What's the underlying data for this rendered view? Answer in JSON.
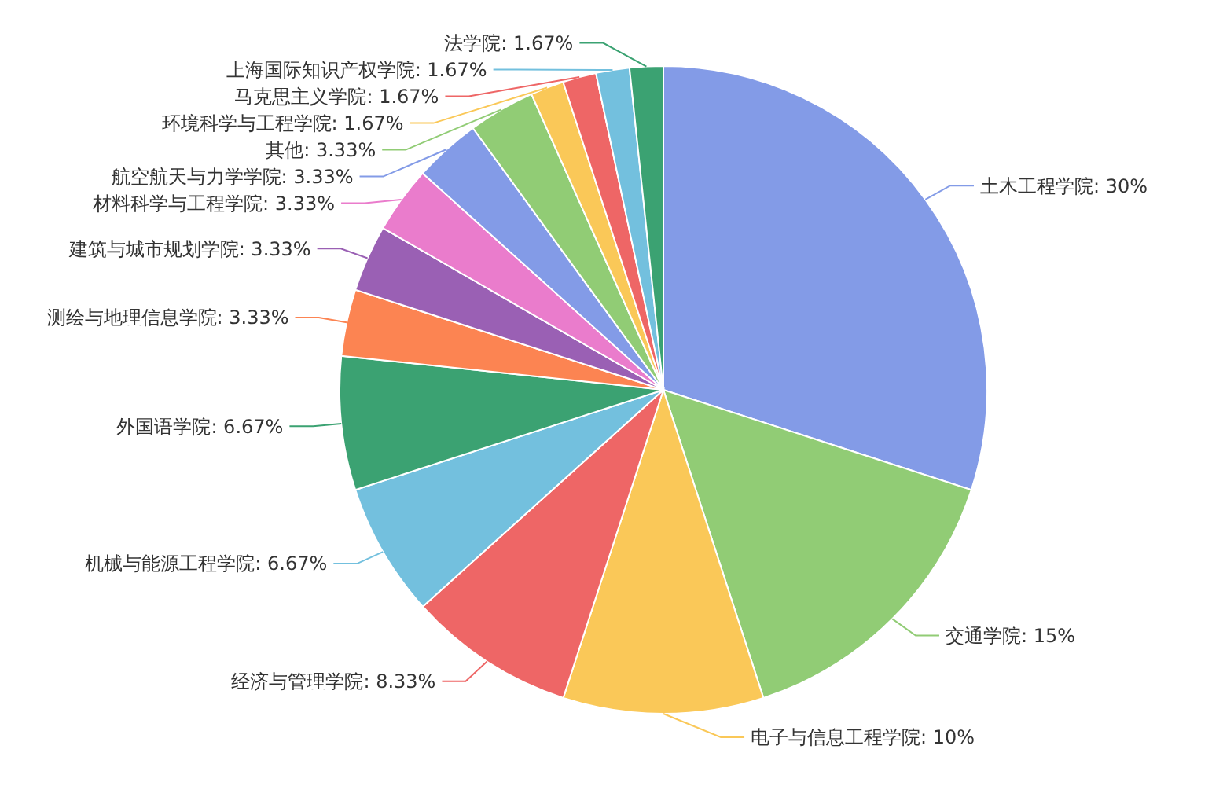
{
  "chart_data": {
    "type": "pie",
    "value_labels": [
      "30%",
      "15%",
      "10%",
      "8.33%",
      "6.67%",
      "6.67%",
      "3.33%",
      "3.33%",
      "3.33%",
      "3.33%",
      "3.33%",
      "1.67%",
      "1.67%",
      "1.67%",
      "1.67%"
    ],
    "categories": [
      "土木工程学院",
      "交通学院",
      "电子与信息工程学院",
      "经济与管理学院",
      "机械与能源工程学院",
      "外国语学院",
      "测绘与地理信息学院",
      "建筑与城市规划学院",
      "材料科学与工程学院",
      "航空航天与力学学院",
      "其他",
      "环境科学与工程学院",
      "马克思主义学院",
      "上海国际知识产权学院",
      "法学院"
    ],
    "values": [
      30,
      15,
      10,
      8.33,
      6.67,
      6.67,
      3.33,
      3.33,
      3.33,
      3.33,
      3.33,
      1.67,
      1.67,
      1.67,
      1.67
    ],
    "colors": [
      "#839be7",
      "#91cc75",
      "#fac858",
      "#ee6666",
      "#73c0de",
      "#3ba272",
      "#fc8452",
      "#9a60b4",
      "#ea7ccc",
      "#839be7",
      "#91cc75",
      "#fac858",
      "#ee6666",
      "#73c0de",
      "#3ba272"
    ]
  }
}
